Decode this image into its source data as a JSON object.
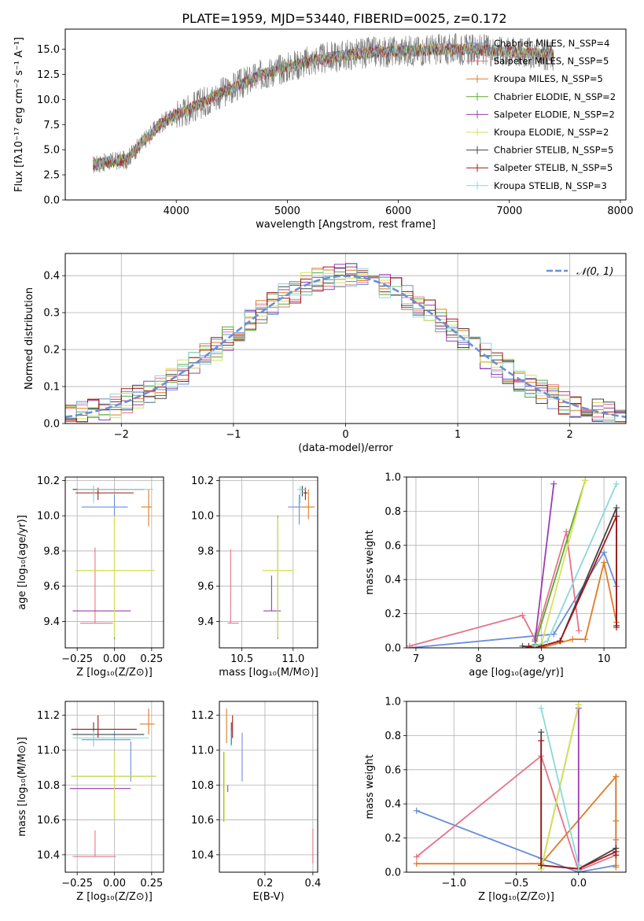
{
  "figure": {
    "title": "PLATE=1959, MJD=53440, FIBERID=0025, z=0.172",
    "colors": {
      "chabrier_miles": "#6b8fd6",
      "salpeter_miles": "#e5738a",
      "kroupa_miles": "#e07b24",
      "chabrier_elodie": "#5aa832",
      "salpeter_elodie": "#9b3dae",
      "kroupa_elodie": "#d8e05a",
      "chabrier_stelib": "#444444",
      "salpeter_stelib": "#a01818",
      "kroupa_stelib": "#8ad8dc",
      "data": "#7f7f7f",
      "normal_fit": "#6b8fd6",
      "grid": "#b0b0b0"
    }
  },
  "chart_data": [
    {
      "id": "spectrum",
      "type": "line",
      "title": "PLATE=1959, MJD=53440, FIBERID=0025, z=0.172",
      "xlabel": "wavelength [Angstrom, rest frame]",
      "ylabel": "Flux [fλ10⁻¹⁷ erg cm⁻² s⁻¹ A⁻¹]",
      "xlim": [
        3000,
        8050
      ],
      "ylim": [
        0,
        17
      ],
      "xticks": [
        "4000",
        "5000",
        "6000",
        "7000",
        "8000"
      ],
      "yticks": [
        "0.0",
        "2.5",
        "5.0",
        "7.5",
        "10.0",
        "12.5",
        "15.0"
      ],
      "legend_position": "top-right",
      "legend": [
        "Chabrier MILES, N_SSP=4",
        "Salpeter MILES, N_SSP=5",
        "Kroupa MILES, N_SSP=5",
        "Chabrier ELODIE, N_SSP=2",
        "Salpeter ELODIE, N_SSP=2",
        "Kroupa ELODIE, N_SSP=2",
        "Chabrier STELIB, N_SSP=5",
        "Salpeter STELIB, N_SSP=5",
        "Kroupa STELIB, N_SSP=3"
      ],
      "continuum": {
        "x": [
          3250,
          3400,
          3550,
          3700,
          3850,
          4000,
          4200,
          4400,
          4600,
          4800,
          5000,
          5200,
          5400,
          5600,
          5800,
          6000,
          6200,
          6400,
          6600,
          6800,
          7000,
          7200,
          7400
        ],
        "y": [
          3.5,
          3.8,
          4.0,
          5.8,
          7.5,
          8.5,
          9.5,
          10.6,
          11.6,
          12.6,
          13.2,
          13.8,
          14.2,
          14.5,
          14.7,
          14.8,
          14.9,
          15.0,
          15.0,
          14.9,
          14.8,
          14.6,
          14.4
        ]
      },
      "data_range": [
        3250,
        7400
      ]
    },
    {
      "id": "residuals",
      "type": "histogram",
      "xlabel": "(data-model)/error",
      "ylabel": "Normed distribution",
      "xlim": [
        -2.5,
        2.5
      ],
      "ylim": [
        0,
        0.46
      ],
      "xticks": [
        "−2",
        "−1",
        "0",
        "1",
        "2"
      ],
      "yticks": [
        "0.0",
        "0.1",
        "0.2",
        "0.3",
        "0.4"
      ],
      "legend": [
        "𝒩(0, 1)"
      ],
      "legend_position": "top-right",
      "bin_width": 0.1,
      "bins_start": -2.5
    },
    {
      "id": "age-vs-Z",
      "type": "errorbar",
      "xlabel": "Z [log₁₀(Z/Z⊙)]",
      "ylabel": "age  [log₁₀(age/yr)]",
      "xlim": [
        -0.33,
        0.33
      ],
      "ylim": [
        9.25,
        10.22
      ],
      "xticks": [
        "−0.25",
        "0.00",
        "0.25"
      ],
      "yticks": [
        "9.4",
        "9.6",
        "9.8",
        "10.0",
        "10.2"
      ],
      "points": [
        {
          "model": "chabrier_miles",
          "x": 0.0,
          "xerr": [
            0.22,
            0.09
          ],
          "y": 10.05,
          "yerr": [
            0.1,
            0.07
          ]
        },
        {
          "model": "salpeter_miles",
          "x": -0.13,
          "xerr": [
            0.1,
            0.12
          ],
          "y": 9.39,
          "yerr": [
            0.0,
            0.0
          ]
        },
        {
          "model": "salpeter_miles",
          "x": -0.13,
          "xerr": [
            0.0,
            0.0
          ],
          "y": 9.69,
          "yerr": [
            0.3,
            0.13
          ]
        },
        {
          "model": "kroupa_miles",
          "x": 0.23,
          "xerr": [
            0.05,
            0.02
          ],
          "y": 10.05,
          "yerr": [
            0.11,
            0.1
          ]
        },
        {
          "model": "chabrier_elodie",
          "x": 0.0,
          "xerr": [
            0.26,
            0.27
          ],
          "y": 9.69,
          "yerr": [
            0.39,
            0.31
          ]
        },
        {
          "model": "salpeter_elodie",
          "x": -0.1,
          "xerr": [
            0.18,
            0.21
          ],
          "y": 9.46,
          "yerr": [
            0.0,
            0.0
          ]
        },
        {
          "model": "kroupa_elodie",
          "x": 0.0,
          "xerr": [
            0.26,
            0.27
          ],
          "y": 9.69,
          "yerr": [
            0.38,
            0.31
          ]
        },
        {
          "model": "chabrier_stelib",
          "x": -0.14,
          "xerr": [
            0.14,
            0.34
          ],
          "y": 10.15,
          "yerr": [
            0.04,
            0.02
          ]
        },
        {
          "model": "salpeter_stelib",
          "x": -0.11,
          "xerr": [
            0.15,
            0.24
          ],
          "y": 10.13,
          "yerr": [
            0.04,
            0.03
          ]
        },
        {
          "model": "kroupa_stelib",
          "x": -0.14,
          "xerr": [
            0.11,
            0.4
          ],
          "y": 10.15,
          "yerr": [
            0.08,
            0.02
          ]
        }
      ]
    },
    {
      "id": "age-vs-mass",
      "type": "errorbar",
      "xlabel": "mass [log₁₀(M/M⊙)]",
      "ylabel": "",
      "xlim": [
        10.28,
        11.24
      ],
      "ylim": [
        9.25,
        10.22
      ],
      "xticks": [
        "10.5",
        "11.0"
      ],
      "yticks": [
        "9.4",
        "9.6",
        "9.8",
        "10.0",
        "10.2"
      ],
      "points": [
        {
          "model": "chabrier_miles",
          "x": 11.06,
          "xerr": [
            0.11,
            0.04
          ],
          "y": 10.05,
          "yerr": [
            0.1,
            0.07
          ]
        },
        {
          "model": "salpeter_miles",
          "x": 10.39,
          "xerr": [
            0.03,
            0.08
          ],
          "y": 9.39,
          "yerr": [
            0.0,
            0.42
          ]
        },
        {
          "model": "kroupa_miles",
          "x": 11.15,
          "xerr": [
            0.06,
            0.06
          ],
          "y": 10.05,
          "yerr": [
            0.07,
            0.1
          ]
        },
        {
          "model": "chabrier_elodie",
          "x": 10.85,
          "xerr": [
            0.14,
            0.15
          ],
          "y": 9.69,
          "yerr": [
            0.39,
            0.31
          ]
        },
        {
          "model": "salpeter_elodie",
          "x": 10.79,
          "xerr": [
            0.08,
            0.09
          ],
          "y": 9.46,
          "yerr": [
            0.0,
            0.2
          ]
        },
        {
          "model": "kroupa_elodie",
          "x": 10.85,
          "xerr": [
            0.15,
            0.15
          ],
          "y": 9.69,
          "yerr": [
            0.38,
            0.3
          ]
        },
        {
          "model": "chabrier_stelib",
          "x": 11.09,
          "xerr": [
            0.02,
            0.04
          ],
          "y": 10.15,
          "yerr": [
            0.04,
            0.02
          ]
        },
        {
          "model": "salpeter_stelib",
          "x": 11.12,
          "xerr": [
            0.02,
            0.02
          ],
          "y": 10.13,
          "yerr": [
            0.04,
            0.03
          ]
        },
        {
          "model": "kroupa_stelib",
          "x": 11.07,
          "xerr": [
            0.03,
            0.06
          ],
          "y": 10.15,
          "yerr": [
            0.08,
            0.02
          ]
        }
      ]
    },
    {
      "id": "weight-vs-age",
      "type": "line",
      "xlabel": "age  [log₁₀(age/yr)]",
      "ylabel": "mass weight",
      "xlim": [
        6.85,
        10.35
      ],
      "ylim": [
        0,
        1.0
      ],
      "xticks": [
        "7",
        "8",
        "9",
        "10"
      ],
      "yticks": [
        "0.0",
        "0.2",
        "0.4",
        "0.6",
        "0.8",
        "1.0"
      ],
      "series": [
        {
          "model": "chabrier_miles",
          "x": [
            6.9,
            8.9,
            9.2,
            10.0,
            10.2
          ],
          "y": [
            0.0,
            0.07,
            0.08,
            0.56,
            0.36
          ]
        },
        {
          "model": "salpeter_miles",
          "x": [
            6.9,
            8.7,
            8.9,
            9.4,
            9.6
          ],
          "y": [
            0.01,
            0.19,
            0.05,
            0.68,
            0.1
          ]
        },
        {
          "model": "kroupa_miles",
          "x": [
            9.0,
            9.5,
            9.7,
            10.0,
            10.2
          ],
          "y": [
            0.0,
            0.05,
            0.05,
            0.5,
            0.15
          ]
        },
        {
          "model": "chabrier_elodie",
          "x": [
            8.9,
            9.7
          ],
          "y": [
            0.02,
            0.98
          ]
        },
        {
          "model": "salpeter_elodie",
          "x": [
            8.9,
            9.2
          ],
          "y": [
            0.04,
            0.96
          ]
        },
        {
          "model": "kroupa_elodie",
          "x": [
            9.0,
            9.7
          ],
          "y": [
            0.02,
            0.98
          ]
        },
        {
          "model": "chabrier_stelib",
          "x": [
            8.7,
            8.9,
            9.3,
            10.2,
            10.2
          ],
          "y": [
            0.01,
            0.0,
            0.04,
            0.82,
            0.13
          ]
        },
        {
          "model": "salpeter_stelib",
          "x": [
            8.8,
            9.0,
            9.3,
            10.2,
            10.2
          ],
          "y": [
            0.01,
            0.01,
            0.04,
            0.77,
            0.12
          ]
        },
        {
          "model": "kroupa_stelib",
          "x": [
            8.9,
            9.1,
            10.2
          ],
          "y": [
            0.01,
            0.04,
            0.96
          ]
        }
      ]
    },
    {
      "id": "mass-vs-Z",
      "type": "errorbar",
      "xlabel": "Z [log₁₀(Z/Z⊙)]",
      "ylabel": "mass [log₁₀(M/M⊙)]",
      "xlim": [
        -0.33,
        0.33
      ],
      "ylim": [
        10.3,
        11.28
      ],
      "xticks": [
        "−0.25",
        "0.00",
        "0.25"
      ],
      "yticks": [
        "10.4",
        "10.6",
        "10.8",
        "11.0",
        "11.2"
      ],
      "points": [
        {
          "model": "chabrier_miles",
          "x": 0.0,
          "xerr": [
            0.22,
            0.11
          ],
          "y": 11.06,
          "yerr": [
            0.0,
            0.05
          ]
        },
        {
          "model": "chabrier_miles",
          "x": 0.11,
          "xerr": [
            0.0,
            0.0
          ],
          "y": 10.9,
          "yerr": [
            0.08,
            0.15
          ]
        },
        {
          "model": "salpeter_miles",
          "x": -0.13,
          "xerr": [
            0.15,
            0.14
          ],
          "y": 10.39,
          "yerr": [
            0.0,
            0.15
          ]
        },
        {
          "model": "kroupa_miles",
          "x": 0.23,
          "xerr": [
            0.06,
            0.04
          ],
          "y": 11.15,
          "yerr": [
            0.06,
            0.09
          ]
        },
        {
          "model": "chabrier_elodie",
          "x": 0.0,
          "xerr": [
            0.29,
            0.28
          ],
          "y": 10.85,
          "yerr": [
            0.25,
            0.14
          ]
        },
        {
          "model": "salpeter_elodie",
          "x": -0.1,
          "xerr": [
            0.2,
            0.21
          ],
          "y": 10.78,
          "yerr": [
            0.0,
            0.0
          ]
        },
        {
          "model": "kroupa_elodie",
          "x": 0.0,
          "xerr": [
            0.29,
            0.28
          ],
          "y": 10.85,
          "yerr": [
            0.25,
            0.14
          ]
        },
        {
          "model": "chabrier_stelib",
          "x": -0.14,
          "xerr": [
            0.14,
            0.34
          ],
          "y": 11.09,
          "yerr": [
            0.06,
            0.07
          ]
        },
        {
          "model": "salpeter_stelib",
          "x": -0.11,
          "xerr": [
            0.18,
            0.26
          ],
          "y": 11.12,
          "yerr": [
            0.05,
            0.08
          ]
        },
        {
          "model": "kroupa_stelib",
          "x": -0.14,
          "xerr": [
            0.14,
            0.37
          ],
          "y": 11.07,
          "yerr": [
            0.05,
            0.04
          ]
        }
      ]
    },
    {
      "id": "mass-vs-EBV",
      "type": "errorbar",
      "xlabel": "E(B-V)",
      "ylabel": "",
      "xlim": [
        0.01,
        0.42
      ],
      "ylim": [
        10.3,
        11.28
      ],
      "xticks": [
        "0.2",
        "0.4"
      ],
      "yticks": [
        "10.4",
        "10.6",
        "10.8",
        "11.0",
        "11.2"
      ],
      "points": [
        {
          "model": "chabrier_miles",
          "x": 0.105,
          "xerr": [
            0.0,
            0.0
          ],
          "y": 10.95,
          "yerr": [
            0.13,
            0.15
          ]
        },
        {
          "model": "salpeter_miles",
          "x": 0.4,
          "xerr": [
            0.0,
            0.0
          ],
          "y": 10.45,
          "yerr": [
            0.1,
            0.1
          ]
        },
        {
          "model": "kroupa_miles",
          "x": 0.04,
          "xerr": [
            0.0,
            0.0
          ],
          "y": 11.1,
          "yerr": [
            0.06,
            0.14
          ]
        },
        {
          "model": "chabrier_elodie",
          "x": 0.028,
          "xerr": [
            0.0,
            0.0
          ],
          "y": 10.85,
          "yerr": [
            0.26,
            0.14
          ]
        },
        {
          "model": "salpeter_elodie",
          "x": 0.045,
          "xerr": [
            0.0,
            0.0
          ],
          "y": 10.8,
          "yerr": [
            0.04,
            0.0
          ]
        },
        {
          "model": "kroupa_elodie",
          "x": 0.03,
          "xerr": [
            0.0,
            0.0
          ],
          "y": 10.85,
          "yerr": [
            0.26,
            0.14
          ]
        },
        {
          "model": "chabrier_stelib",
          "x": 0.06,
          "xerr": [
            0.0,
            0.0
          ],
          "y": 11.09,
          "yerr": [
            0.06,
            0.07
          ]
        },
        {
          "model": "salpeter_stelib",
          "x": 0.065,
          "xerr": [
            0.0,
            0.0
          ],
          "y": 11.12,
          "yerr": [
            0.05,
            0.08
          ]
        },
        {
          "model": "kroupa_stelib",
          "x": 0.058,
          "xerr": [
            0.0,
            0.0
          ],
          "y": 11.07,
          "yerr": [
            0.05,
            0.04
          ]
        }
      ]
    },
    {
      "id": "weight-vs-Z",
      "type": "line",
      "xlabel": "Z [log₁₀(Z/Z⊙)]",
      "ylabel": "mass weight",
      "xlim": [
        -1.38,
        0.38
      ],
      "ylim": [
        0,
        1.0
      ],
      "xticks": [
        "−1.0",
        "−0.5",
        "0.0"
      ],
      "yticks": [
        "0.0",
        "0.2",
        "0.4",
        "0.6",
        "0.8",
        "1.0"
      ],
      "series": [
        {
          "model": "chabrier_miles",
          "x": [
            -1.3,
            -0.3,
            0.0,
            0.3,
            0.3
          ],
          "y": [
            0.36,
            0.08,
            0.0,
            0.04,
            0.56
          ]
        },
        {
          "model": "salpeter_miles",
          "x": [
            -1.3,
            -0.3,
            0.0,
            0.3,
            0.3
          ],
          "y": [
            0.09,
            0.68,
            0.01,
            0.1,
            0.19
          ]
        },
        {
          "model": "kroupa_miles",
          "x": [
            -1.3,
            -0.3,
            0.3,
            0.3,
            0.3
          ],
          "y": [
            0.05,
            0.05,
            0.56,
            0.3,
            0.03
          ]
        },
        {
          "model": "chabrier_elodie",
          "x": [
            -0.3,
            0.0
          ],
          "y": [
            0.02,
            0.98
          ]
        },
        {
          "model": "salpeter_elodie",
          "x": [
            0.0,
            0.0
          ],
          "y": [
            0.04,
            0.96
          ]
        },
        {
          "model": "kroupa_elodie",
          "x": [
            -0.3,
            0.0
          ],
          "y": [
            0.02,
            0.98
          ]
        },
        {
          "model": "chabrier_stelib",
          "x": [
            -0.3,
            -0.3,
            0.0,
            0.3,
            0.3
          ],
          "y": [
            0.82,
            0.04,
            0.02,
            0.14,
            0.12
          ]
        },
        {
          "model": "salpeter_stelib",
          "x": [
            -0.3,
            -0.3,
            0.0,
            0.3,
            0.3
          ],
          "y": [
            0.77,
            0.04,
            0.02,
            0.12,
            0.1
          ]
        },
        {
          "model": "kroupa_stelib",
          "x": [
            -0.3,
            0.0,
            0.0
          ],
          "y": [
            0.96,
            0.04,
            0.01
          ]
        }
      ]
    }
  ]
}
